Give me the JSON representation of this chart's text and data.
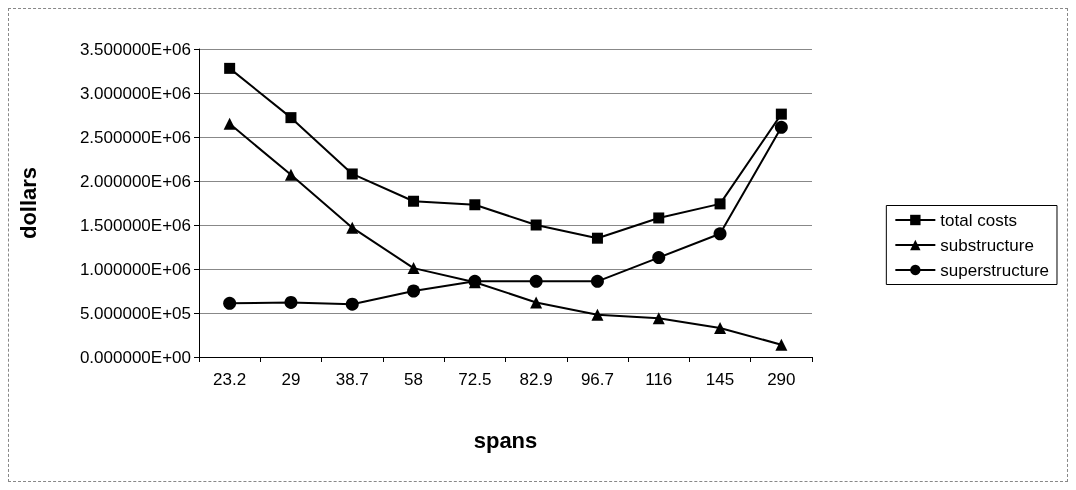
{
  "chart_data": {
    "type": "line",
    "xlabel": "spans",
    "ylabel": "dollars",
    "categories": [
      "23.2",
      "29",
      "38.7",
      "58",
      "72.5",
      "82.9",
      "96.7",
      "116",
      "145",
      "290"
    ],
    "series": [
      {
        "name": "total costs",
        "color": "#000000",
        "marker": "square",
        "values": [
          3280000,
          2720000,
          2080000,
          1770000,
          1730000,
          1500000,
          1350000,
          1580000,
          1740000,
          2760000
        ]
      },
      {
        "name": "substructure",
        "color": "#000000",
        "marker": "triangle",
        "values": [
          2650000,
          2070000,
          1470000,
          1010000,
          850000,
          620000,
          480000,
          440000,
          330000,
          140000
        ]
      },
      {
        "name": "superstructure",
        "color": "#000000",
        "marker": "circle",
        "values": [
          610000,
          620000,
          600000,
          750000,
          860000,
          860000,
          860000,
          1130000,
          1400000,
          2610000
        ]
      }
    ],
    "ylim": [
      0,
      3500000
    ],
    "yticks": [
      {
        "value": 0,
        "label": "0.000000E+00"
      },
      {
        "value": 500000,
        "label": "5.000000E+05"
      },
      {
        "value": 1000000,
        "label": "1.000000E+06"
      },
      {
        "value": 1500000,
        "label": "1.500000E+06"
      },
      {
        "value": 2000000,
        "label": "2.000000E+06"
      },
      {
        "value": 2500000,
        "label": "2.500000E+06"
      },
      {
        "value": 3000000,
        "label": "3.000000E+06"
      },
      {
        "value": 3500000,
        "label": "3.500000E+06"
      }
    ],
    "grid": "y",
    "legend": "right",
    "line_style": "solid"
  }
}
